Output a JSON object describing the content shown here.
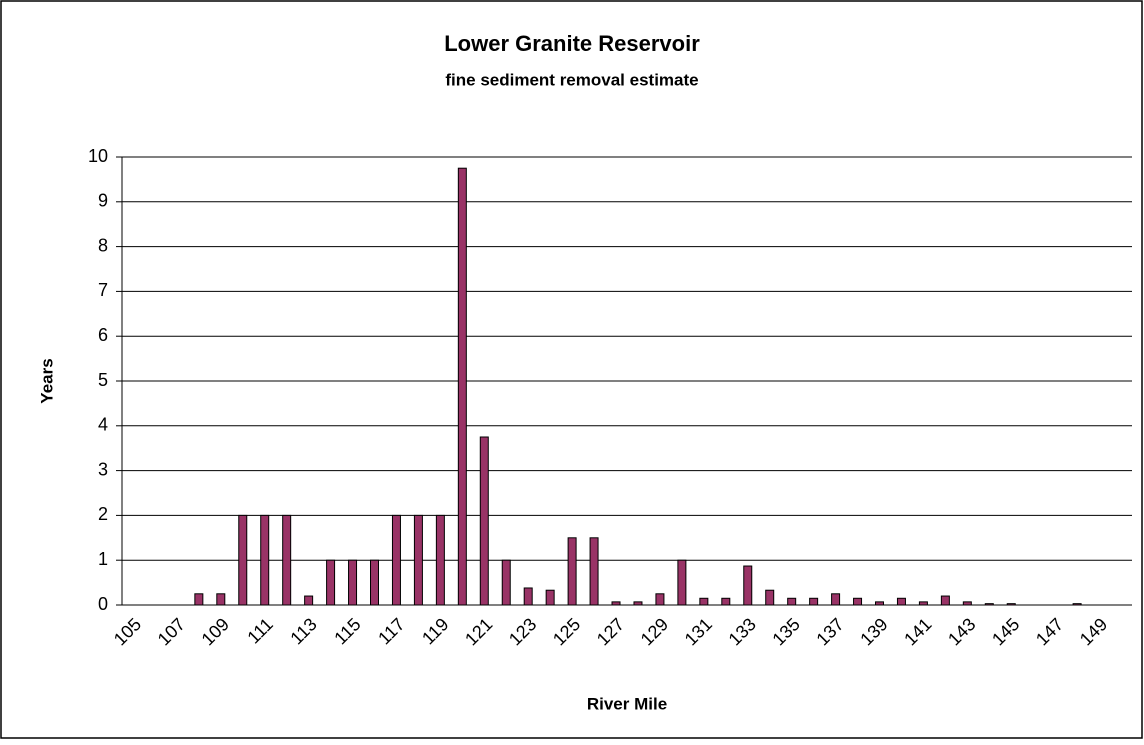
{
  "chart_data": {
    "type": "bar",
    "title": "Lower Granite Reservoir",
    "subtitle": "fine sediment removal estimate",
    "xlabel": "River Mile",
    "ylabel": "Years",
    "categories": [
      "105",
      null,
      "107",
      null,
      "109",
      null,
      "111",
      null,
      "113",
      null,
      "115",
      null,
      "117",
      null,
      "119",
      null,
      "121",
      null,
      "123",
      null,
      "125",
      null,
      "127",
      null,
      "129",
      null,
      "131",
      null,
      "133",
      null,
      "135",
      null,
      "137",
      null,
      "139",
      null,
      "141",
      null,
      "143",
      null,
      "145",
      null,
      "147",
      null,
      "149",
      null
    ],
    "values": [
      0,
      0,
      0,
      0.25,
      0.25,
      2,
      2,
      2,
      0.2,
      1,
      1,
      1,
      2,
      2,
      2,
      9.75,
      3.75,
      1,
      0.38,
      0.33,
      1.5,
      1.5,
      0.07,
      0.07,
      0.25,
      1,
      0.15,
      0.15,
      0.87,
      0.33,
      0.15,
      0.15,
      0.25,
      0.15,
      0.07,
      0.15,
      0.07,
      0.2,
      0.07,
      0.03,
      0.03,
      0,
      0,
      0.03,
      0,
      0
    ],
    "color": "#993366",
    "ylim": [
      0,
      10
    ],
    "yticks": [
      0,
      1,
      2,
      3,
      4,
      5,
      6,
      7,
      8,
      9,
      10
    ],
    "grid": true
  }
}
